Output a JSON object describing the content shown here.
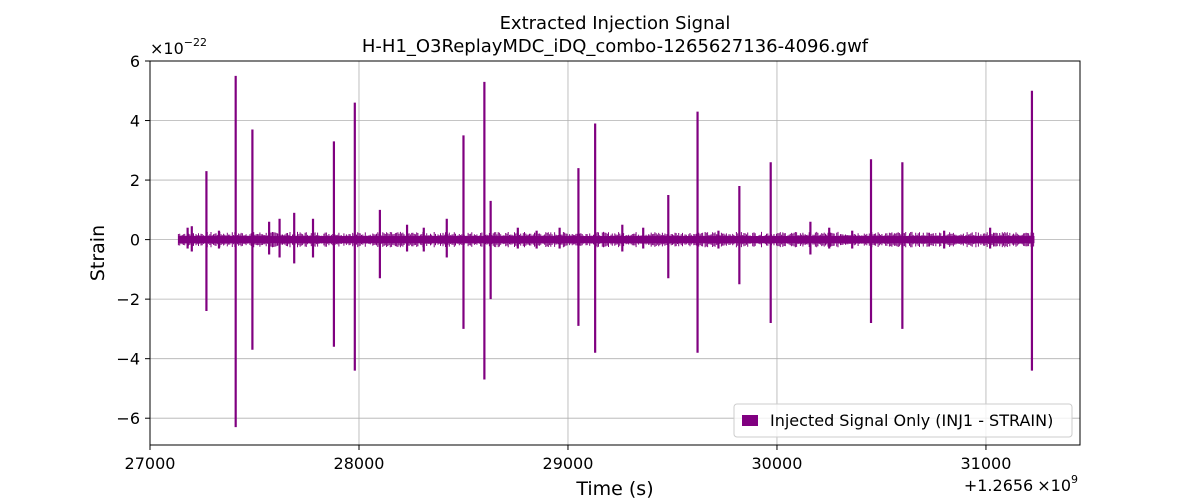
{
  "chart_data": {
    "type": "line",
    "title": "Extracted Injection Signal",
    "subtitle": "H-H1_O3ReplayMDC_iDQ_combo-1265627136-4096.gwf",
    "xlabel": "Time (s)",
    "ylabel": "Strain",
    "x_offset_label": "+1.2656",
    "x_offset_label_tail": "×10",
    "x_offset_exponent": "9",
    "y_multiplier_label": "×10",
    "y_multiplier_exponent": "−22",
    "xlim": [
      27000,
      31450
    ],
    "ylim": [
      -6.9,
      6.0
    ],
    "x_ticks": [
      27000,
      28000,
      29000,
      30000,
      31000
    ],
    "x_tick_labels": [
      "27000",
      "28000",
      "29000",
      "30000",
      "31000"
    ],
    "y_ticks": [
      -6,
      -4,
      -2,
      0,
      2,
      4,
      6
    ],
    "y_tick_labels": [
      "−6",
      "−4",
      "−2",
      "0",
      "2",
      "4",
      "6"
    ],
    "grid": true,
    "legend_position": "lower-right",
    "series": [
      {
        "name": "Injected Signal Only (INJ1 - STRAIN)",
        "color": "#800080",
        "time_range": [
          27136,
          31232
        ],
        "baseline_band": [
          -0.12,
          0.12
        ],
        "spikes": [
          {
            "t": 27180,
            "max": 0.4,
            "min": -0.3
          },
          {
            "t": 27200,
            "max": 0.45,
            "min": -0.4
          },
          {
            "t": 27270,
            "max": 2.3,
            "min": -2.4
          },
          {
            "t": 27330,
            "max": 0.3,
            "min": -0.3
          },
          {
            "t": 27410,
            "max": 5.5,
            "min": -6.3
          },
          {
            "t": 27490,
            "max": 3.7,
            "min": -3.7
          },
          {
            "t": 27570,
            "max": 0.6,
            "min": -0.5
          },
          {
            "t": 27620,
            "max": 0.7,
            "min": -0.6
          },
          {
            "t": 27690,
            "max": 0.9,
            "min": -0.8
          },
          {
            "t": 27780,
            "max": 0.7,
            "min": -0.6
          },
          {
            "t": 27880,
            "max": 3.3,
            "min": -3.6
          },
          {
            "t": 27980,
            "max": 4.6,
            "min": -4.4
          },
          {
            "t": 28100,
            "max": 1.0,
            "min": -1.3
          },
          {
            "t": 28230,
            "max": 0.5,
            "min": -0.4
          },
          {
            "t": 28310,
            "max": 0.4,
            "min": -0.4
          },
          {
            "t": 28420,
            "max": 0.7,
            "min": -0.6
          },
          {
            "t": 28500,
            "max": 3.5,
            "min": -3.0
          },
          {
            "t": 28600,
            "max": 5.3,
            "min": -4.7
          },
          {
            "t": 28630,
            "max": 1.3,
            "min": -2.0
          },
          {
            "t": 28760,
            "max": 0.4,
            "min": -0.3
          },
          {
            "t": 28850,
            "max": 0.3,
            "min": -0.3
          },
          {
            "t": 28960,
            "max": 0.4,
            "min": -0.3
          },
          {
            "t": 29050,
            "max": 2.4,
            "min": -2.9
          },
          {
            "t": 29130,
            "max": 3.9,
            "min": -3.8
          },
          {
            "t": 29260,
            "max": 0.5,
            "min": -0.4
          },
          {
            "t": 29360,
            "max": 0.4,
            "min": -0.3
          },
          {
            "t": 29480,
            "max": 1.5,
            "min": -1.3
          },
          {
            "t": 29620,
            "max": 4.3,
            "min": -3.8
          },
          {
            "t": 29720,
            "max": 0.3,
            "min": -0.3
          },
          {
            "t": 29820,
            "max": 1.8,
            "min": -1.5
          },
          {
            "t": 29970,
            "max": 2.6,
            "min": -2.8
          },
          {
            "t": 30160,
            "max": 0.6,
            "min": -0.5
          },
          {
            "t": 30250,
            "max": 0.4,
            "min": -0.3
          },
          {
            "t": 30360,
            "max": 0.3,
            "min": -0.3
          },
          {
            "t": 30450,
            "max": 2.7,
            "min": -2.8
          },
          {
            "t": 30600,
            "max": 2.6,
            "min": -3.0
          },
          {
            "t": 30800,
            "max": 0.3,
            "min": -0.3
          },
          {
            "t": 31020,
            "max": 0.4,
            "min": -0.3
          },
          {
            "t": 31220,
            "max": 5.0,
            "min": -4.4
          }
        ]
      }
    ]
  }
}
